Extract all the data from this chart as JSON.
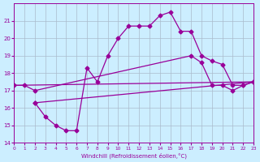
{
  "xlabel": "Windchill (Refroidissement éolien,°C)",
  "xlim": [
    0,
    23
  ],
  "ylim": [
    14,
    22
  ],
  "yticks": [
    14,
    15,
    16,
    17,
    18,
    19,
    20,
    21
  ],
  "xticks": [
    0,
    1,
    2,
    3,
    4,
    5,
    6,
    7,
    8,
    9,
    10,
    11,
    12,
    13,
    14,
    15,
    16,
    17,
    18,
    19,
    20,
    21,
    22,
    23
  ],
  "bg_color": "#cceeff",
  "grid_color": "#aabbcc",
  "line_color": "#990099",
  "lines": [
    {
      "x": [
        0,
        1,
        2,
        17,
        18,
        19,
        20,
        21,
        22,
        23
      ],
      "y": [
        17.3,
        17.3,
        17.0,
        19.0,
        18.6,
        17.3,
        17.3,
        17.0,
        17.3,
        17.5
      ]
    },
    {
      "x": [
        2,
        3,
        4,
        5,
        6,
        7,
        8,
        9,
        10,
        11,
        12,
        13,
        14,
        15,
        16,
        17,
        18,
        19,
        20,
        21,
        22,
        23
      ],
      "y": [
        16.3,
        15.5,
        15.0,
        14.7,
        14.7,
        18.3,
        17.5,
        19.0,
        20.0,
        20.7,
        20.7,
        20.7,
        21.3,
        21.5,
        20.4,
        20.4,
        19.0,
        18.7,
        18.5,
        17.3,
        17.3,
        17.5
      ]
    },
    {
      "x": [
        2,
        23
      ],
      "y": [
        16.3,
        17.5
      ]
    },
    {
      "x": [
        0,
        23
      ],
      "y": [
        17.3,
        17.5
      ]
    }
  ]
}
